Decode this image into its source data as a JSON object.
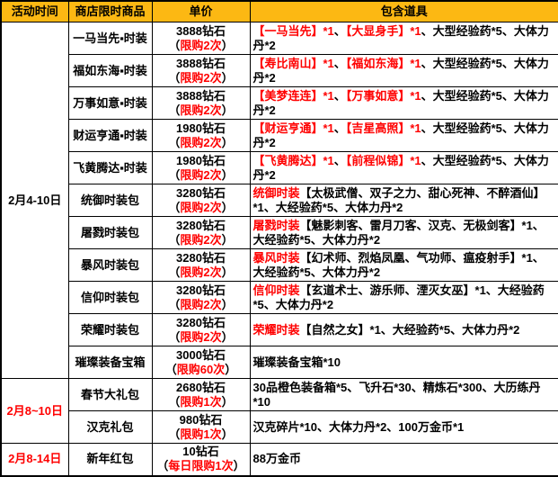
{
  "table": {
    "columns": [
      "活动时间",
      "商店限时商品",
      "单价",
      "包含道具"
    ],
    "paren_open": "（",
    "paren_close": "）",
    "colors": {
      "header_bg": "#FCB813",
      "accent_red": "#FF0000",
      "text": "#000000",
      "border": "#000000"
    },
    "groups": [
      {
        "time": "2月4-10日",
        "red": false,
        "row_span": 11
      },
      {
        "time": "2月8~10日",
        "red": true,
        "row_span": 2
      },
      {
        "time": "2月8-14日",
        "red": true,
        "row_span": 1
      }
    ],
    "rows": [
      {
        "item": "一马当先▪时装",
        "price": "3888钻石",
        "limit": "限购2次",
        "contents": [
          {
            "text": "【一马当先】*1",
            "red": true
          },
          {
            "text": "、",
            "red": false
          },
          {
            "text": "【大显身手】*1",
            "red": true
          },
          {
            "text": "、大型经验药*5、大体力丹*2",
            "red": false
          }
        ]
      },
      {
        "item": "福如东海▪时装",
        "price": "3888钻石",
        "limit": "限购2次",
        "contents": [
          {
            "text": "【寿比南山】*1",
            "red": true
          },
          {
            "text": "、",
            "red": false
          },
          {
            "text": "【福如东海】*1",
            "red": true
          },
          {
            "text": "、大型经验药*5、大体力丹*2",
            "red": false
          }
        ]
      },
      {
        "item": "万事如意▪时装",
        "price": "3888钻石",
        "limit": "限购2次",
        "contents": [
          {
            "text": "【美梦连连】*1",
            "red": true
          },
          {
            "text": "、",
            "red": false
          },
          {
            "text": "【万事如意】*1",
            "red": true
          },
          {
            "text": "、大型经验药*5、大体力丹*2",
            "red": false
          }
        ]
      },
      {
        "item": "财运亨通▪时装",
        "price": "1980钻石",
        "limit": "限购2次",
        "contents": [
          {
            "text": "【财运亨通】*1",
            "red": true
          },
          {
            "text": "、",
            "red": false
          },
          {
            "text": "【吉星高照】*1",
            "red": true
          },
          {
            "text": "、大型经验药*5、大体力丹*2",
            "red": false
          }
        ]
      },
      {
        "item": "飞黄腾达▪时装",
        "price": "1980钻石",
        "limit": "限购2次",
        "contents": [
          {
            "text": "【飞黄腾达】*1",
            "red": true
          },
          {
            "text": "、",
            "red": false
          },
          {
            "text": "【前程似锦】*1",
            "red": true
          },
          {
            "text": "、大型经验药*5、大体力丹*2",
            "red": false
          }
        ]
      },
      {
        "item": "统御时装包",
        "price": "3280钻石",
        "limit": "限购2次",
        "contents": [
          {
            "text": "统御时装",
            "red": true
          },
          {
            "text": "【太极武僧、双子之力、甜心死神、不醉酒仙】*1、大经验药*5、大体力丹*2",
            "red": false
          }
        ]
      },
      {
        "item": "屠戮时装包",
        "price": "3280钻石",
        "limit": "限购2次",
        "contents": [
          {
            "text": "屠戮时装",
            "red": true
          },
          {
            "text": "【魅影刺客、雷月刀客、汉克、无极剑客】*1、大经验药*5、大体力丹*2",
            "red": false
          }
        ]
      },
      {
        "item": "暴风时装包",
        "price": "3280钻石",
        "limit": "限购2次",
        "contents": [
          {
            "text": "暴风时装",
            "red": true
          },
          {
            "text": "【幻术师、烈焰凤凰、气功师、瘟疫射手】*1、大经验药*5、大体力丹*2",
            "red": false
          }
        ]
      },
      {
        "item": "信仰时装包",
        "price": "3280钻石",
        "limit": "限购2次",
        "contents": [
          {
            "text": "信仰时装",
            "red": true
          },
          {
            "text": "【玄道术士、游乐师、湮灭女巫】*1、大经验药*5、大体力丹*2",
            "red": false
          }
        ]
      },
      {
        "item": "荣耀时装包",
        "price": "3280钻石",
        "limit": "限购2次",
        "contents": [
          {
            "text": "荣耀时装",
            "red": true
          },
          {
            "text": "【自然之女】*1、大经验药*5、大体力丹*2",
            "red": false
          }
        ]
      },
      {
        "item": "璀璨装备宝箱",
        "price": "3000钻石",
        "limit": "限购60次",
        "contents": [
          {
            "text": "璀璨装备宝箱*10",
            "red": false
          }
        ]
      },
      {
        "item": "春节大礼包",
        "price": "2680钻石",
        "limit": "限购1次",
        "contents": [
          {
            "text": "30品橙色装备箱*5、飞升石*30、精炼石*300、大历练丹*10",
            "red": false
          }
        ]
      },
      {
        "item": "汉克礼包",
        "price": "980钻石",
        "limit": "限购1次",
        "contents": [
          {
            "text": "汉克碎片*10、大体力丹*2、100万金币*1",
            "red": false
          }
        ]
      },
      {
        "item": "新年红包",
        "price": "10钻石",
        "limit": "每日限购1次",
        "contents": [
          {
            "text": "88万金币",
            "red": false
          }
        ]
      }
    ]
  }
}
